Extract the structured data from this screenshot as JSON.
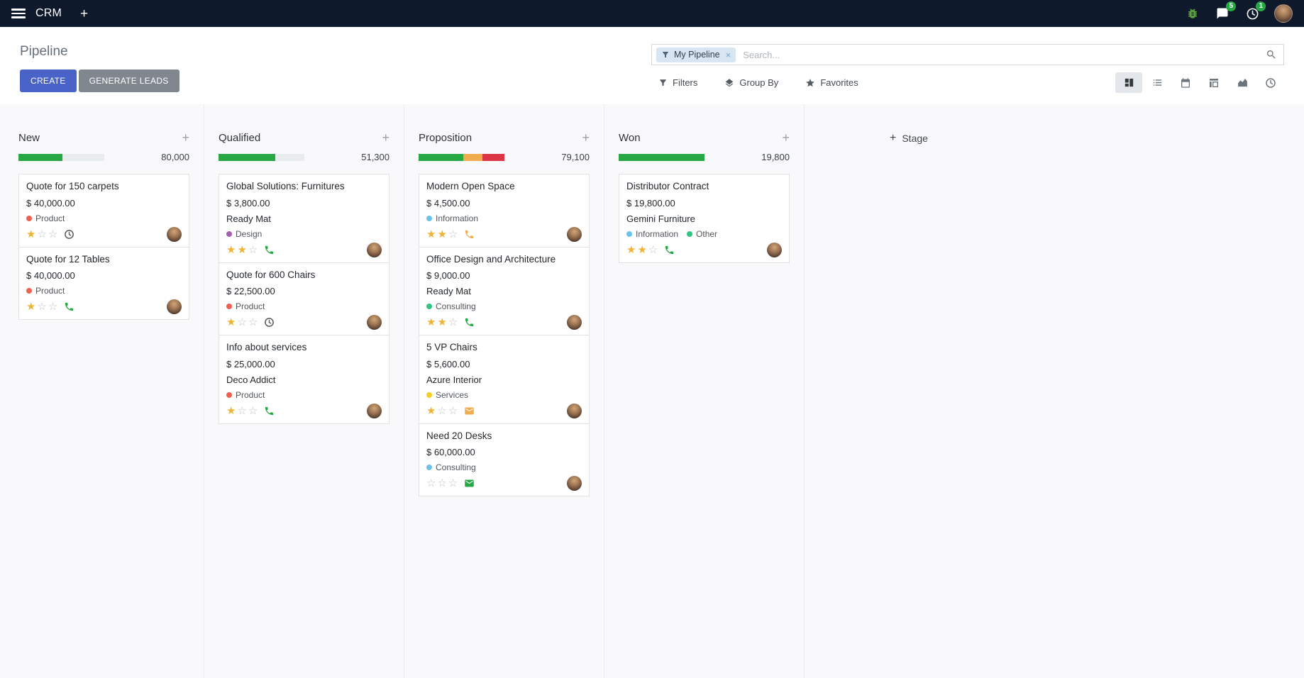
{
  "topbar": {
    "app_name": "CRM",
    "messages_badge": "5",
    "activities_badge": "1"
  },
  "control_panel": {
    "title": "Pipeline",
    "create_label": "CREATE",
    "generate_leads_label": "GENERATE LEADS",
    "search": {
      "facet_label": "My Pipeline",
      "remove_facet": "×",
      "placeholder": "Search..."
    },
    "filters_label": "Filters",
    "group_by_label": "Group By",
    "favorites_label": "Favorites",
    "view_switcher": [
      {
        "name": "kanban",
        "active": true
      },
      {
        "name": "list",
        "active": false
      },
      {
        "name": "calendar",
        "active": false
      },
      {
        "name": "pivot",
        "active": false
      },
      {
        "name": "graph",
        "active": false
      },
      {
        "name": "activity",
        "active": false
      }
    ]
  },
  "colors": {
    "topbar_bg": "#0e1a2b",
    "primary_button": "#4a63c8",
    "secondary_button": "#81878f",
    "progress_green": "#28a745",
    "progress_yellow": "#f0ad4e",
    "progress_red": "#dc3545",
    "progress_empty": "#e9ecef",
    "star_gold": "#f0b332",
    "facet_bg": "#d8e5f3",
    "badge_green": "#28a745"
  },
  "icons": {
    "topbar": [
      "apps-menu-icon",
      "quick-create-icon",
      "debug-bug-icon",
      "messages-icon",
      "activities-icon",
      "user-avatar"
    ],
    "search": [
      "filter-funnel-icon",
      "search-icon"
    ],
    "view_switcher": [
      "kanban-icon",
      "list-icon",
      "calendar-icon",
      "pivot-icon",
      "graph-icon",
      "activity-clock-icon"
    ],
    "card": [
      "star-icon",
      "phone-icon",
      "envelope-icon",
      "clock-icon",
      "assignee-avatar"
    ]
  },
  "board": {
    "add_stage_label": "Stage",
    "columns": [
      {
        "name": "New",
        "total": "80,000",
        "progress": [
          {
            "color": "#28a745",
            "pct": 51
          },
          {
            "color": "#e9ecef",
            "pct": 49
          }
        ],
        "cards": [
          {
            "title": "Quote for 150 carpets",
            "amount": "$ 40,000.00",
            "partner": "",
            "tags": [
              {
                "label": "Product",
                "color": "#f06050"
              }
            ],
            "stars": 1,
            "activity": {
              "icon": "clock",
              "color": "#585858"
            }
          },
          {
            "title": "Quote for 12 Tables",
            "amount": "$ 40,000.00",
            "partner": "",
            "tags": [
              {
                "label": "Product",
                "color": "#f06050"
              }
            ],
            "stars": 1,
            "activity": {
              "icon": "phone",
              "color": "#28a745"
            }
          }
        ]
      },
      {
        "name": "Qualified",
        "total": "51,300",
        "progress": [
          {
            "color": "#28a745",
            "pct": 66
          },
          {
            "color": "#e9ecef",
            "pct": 34
          }
        ],
        "cards": [
          {
            "title": "Global Solutions: Furnitures",
            "amount": "$ 3,800.00",
            "partner": "Ready Mat",
            "tags": [
              {
                "label": "Design",
                "color": "#a461ab"
              }
            ],
            "stars": 2,
            "activity": {
              "icon": "phone",
              "color": "#28a745"
            }
          },
          {
            "title": "Quote for 600 Chairs",
            "amount": "$ 22,500.00",
            "partner": "",
            "tags": [
              {
                "label": "Product",
                "color": "#f06050"
              }
            ],
            "stars": 1,
            "activity": {
              "icon": "clock",
              "color": "#585858"
            }
          },
          {
            "title": "Info about services",
            "amount": "$ 25,000.00",
            "partner": "Deco Addict",
            "tags": [
              {
                "label": "Product",
                "color": "#f06050"
              }
            ],
            "stars": 1,
            "activity": {
              "icon": "phone",
              "color": "#28a745"
            }
          }
        ]
      },
      {
        "name": "Proposition",
        "total": "79,100",
        "progress": [
          {
            "color": "#28a745",
            "pct": 52
          },
          {
            "color": "#f0ad4e",
            "pct": 22
          },
          {
            "color": "#dc3545",
            "pct": 26
          }
        ],
        "cards": [
          {
            "title": "Modern Open Space",
            "amount": "$ 4,500.00",
            "partner": "",
            "tags": [
              {
                "label": "Information",
                "color": "#6cc1ed"
              }
            ],
            "stars": 2,
            "activity": {
              "icon": "phone",
              "color": "#f0ad4e"
            }
          },
          {
            "title": "Office Design and Architecture",
            "amount": "$ 9,000.00",
            "partner": "Ready Mat",
            "tags": [
              {
                "label": "Consulting",
                "color": "#30c381"
              }
            ],
            "stars": 2,
            "activity": {
              "icon": "phone",
              "color": "#28a745"
            }
          },
          {
            "title": "5 VP Chairs",
            "amount": "$ 5,600.00",
            "partner": "Azure Interior",
            "tags": [
              {
                "label": "Services",
                "color": "#f7cd1f"
              }
            ],
            "stars": 1,
            "activity": {
              "icon": "envelope",
              "color": "#f0ad4e"
            }
          },
          {
            "title": "Need 20 Desks",
            "amount": "$ 60,000.00",
            "partner": "",
            "tags": [
              {
                "label": "Consulting",
                "color": "#6cc1ed"
              }
            ],
            "stars": 0,
            "activity": {
              "icon": "envelope",
              "color": "#28a745"
            }
          }
        ]
      },
      {
        "name": "Won",
        "total": "19,800",
        "progress": [
          {
            "color": "#28a745",
            "pct": 100
          }
        ],
        "cards": [
          {
            "title": "Distributor Contract",
            "amount": "$ 19,800.00",
            "partner": "Gemini Furniture",
            "tags": [
              {
                "label": "Information",
                "color": "#6cc1ed"
              },
              {
                "label": "Other",
                "color": "#30c381"
              }
            ],
            "stars": 2,
            "activity": {
              "icon": "phone",
              "color": "#28a745"
            }
          }
        ]
      }
    ]
  }
}
